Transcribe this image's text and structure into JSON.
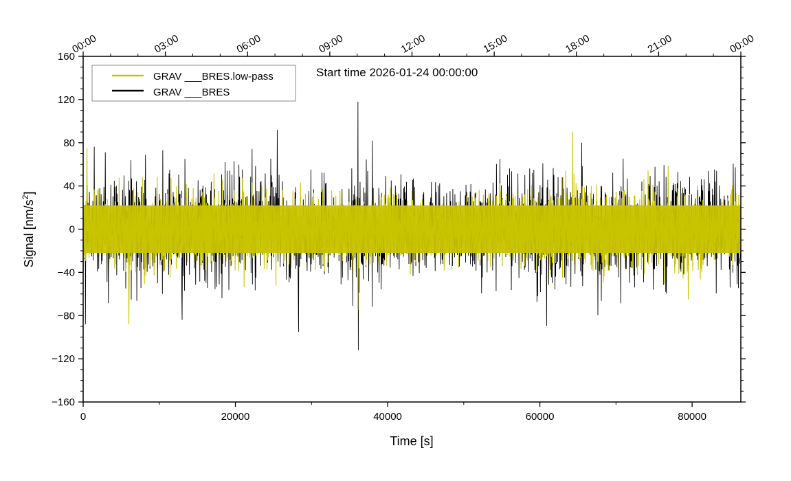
{
  "chart_data": {
    "type": "line",
    "title": "",
    "annotation": "Start time 2026-01-24 00:00:00",
    "xlabel": "Time [s]",
    "ylabel_main": "Signal [nm/s",
    "ylabel_sup": "2",
    "ylabel_end": "]",
    "xlim": [
      0,
      86400
    ],
    "ylim": [
      -160,
      160
    ],
    "x_ticks": [
      0,
      20000,
      40000,
      60000,
      80000
    ],
    "x_tick_labels": [
      "0",
      "20000",
      "40000",
      "60000",
      "80000"
    ],
    "y_ticks": [
      -160,
      -120,
      -80,
      -40,
      0,
      40,
      80,
      120,
      160
    ],
    "y_tick_labels": [
      "−160",
      "−120",
      "−80",
      "−40",
      "0",
      "40",
      "80",
      "120",
      "160"
    ],
    "top_ticks_seconds": [
      0,
      10800,
      21600,
      32400,
      43200,
      54000,
      64800,
      75600,
      86400
    ],
    "top_tick_labels": [
      "00:00",
      "03:00",
      "06:00",
      "09:00",
      "12:00",
      "15:00",
      "18:00",
      "21:00",
      "00:00"
    ],
    "legend_position": "top-left",
    "series": [
      {
        "name": "GRAV ___BRES.low-pass",
        "color": "#c8c400",
        "typical_range": [
          -40,
          40
        ],
        "notable_peaks": [
          {
            "x": 500,
            "y": 75
          },
          {
            "x": 6000,
            "y": -88
          },
          {
            "x": 36100,
            "y": -75
          },
          {
            "x": 64300,
            "y": 90
          },
          {
            "x": 79500,
            "y": -65
          }
        ]
      },
      {
        "name": "GRAV ___BRES",
        "color": "#000000",
        "typical_range": [
          -55,
          55
        ],
        "notable_peaks": [
          {
            "x": 300,
            "y": -88
          },
          {
            "x": 13000,
            "y": -84
          },
          {
            "x": 25500,
            "y": 92
          },
          {
            "x": 28300,
            "y": -95
          },
          {
            "x": 36100,
            "y": 118
          },
          {
            "x": 36150,
            "y": -112
          },
          {
            "x": 38000,
            "y": 82
          },
          {
            "x": 65500,
            "y": 80
          }
        ]
      }
    ]
  }
}
